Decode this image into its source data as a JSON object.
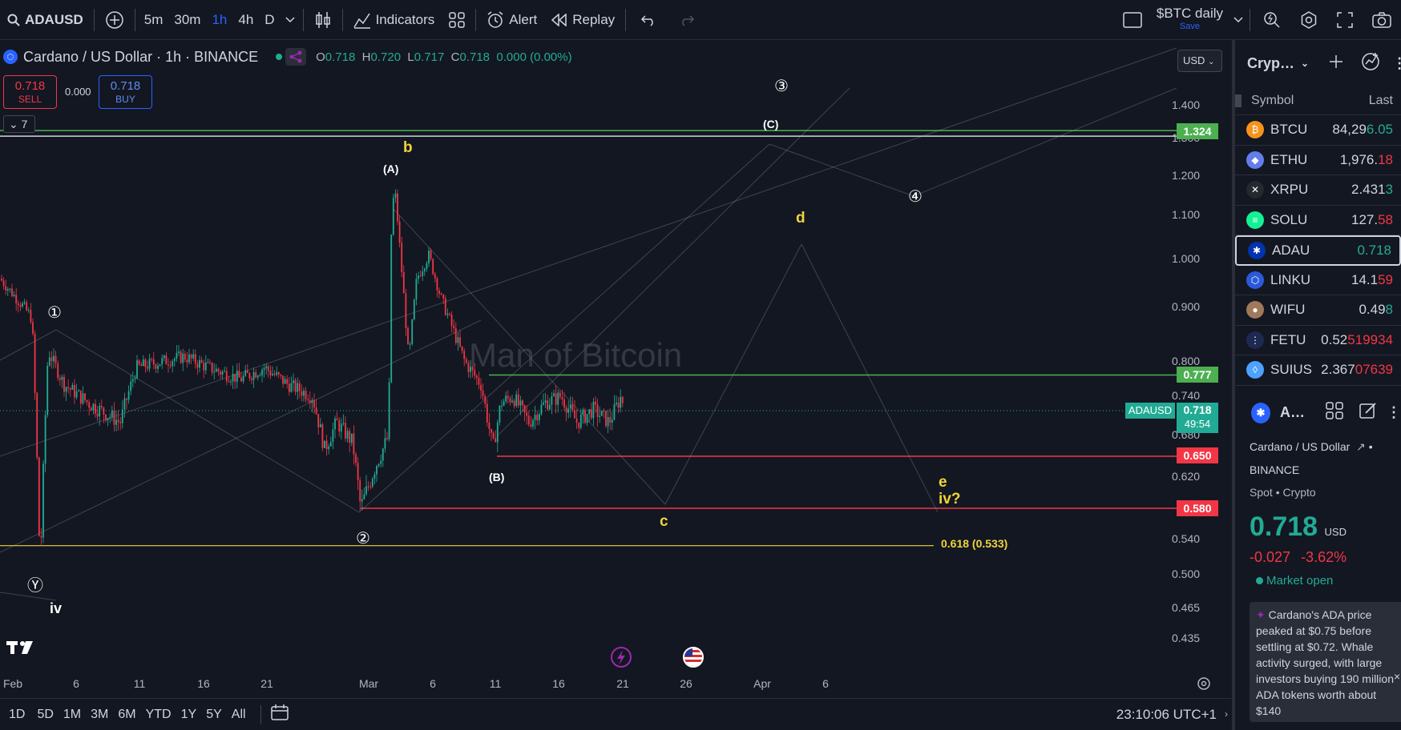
{
  "toolbar": {
    "symbol": "ADAUSD",
    "intervals": [
      "5m",
      "30m",
      "1h",
      "4h",
      "D"
    ],
    "active_interval": "1h",
    "indicators_label": "Indicators",
    "alert_label": "Alert",
    "replay_label": "Replay",
    "layout_name": "$BTC daily",
    "save_label": "Save"
  },
  "legend": {
    "title": "Cardano / US Dollar · 1h · BINANCE",
    "o_label": "O",
    "o": "0.718",
    "h_label": "H",
    "h": "0.720",
    "l_label": "L",
    "l": "0.717",
    "c_label": "C",
    "c": "0.718",
    "change": "0.000 (0.00%)",
    "sell_price": "0.718",
    "sell_label": "SELL",
    "spread": "0.000",
    "buy_price": "0.718",
    "buy_label": "BUY",
    "collapse_count": "7",
    "currency": "USD"
  },
  "watermark": "Man of Bitcoin",
  "price_axis": [
    "1.400",
    "1.300",
    "1.200",
    "1.100",
    "1.000",
    "0.900",
    "0.800",
    "0.740",
    "0.680",
    "0.620",
    "0.540",
    "0.500",
    "0.465",
    "0.435"
  ],
  "price_tags": {
    "level_1324": "1.324",
    "level_0777": "0.777",
    "current_symbol": "ADAUSD",
    "current_price": "0.718",
    "countdown": "49:54",
    "level_0650": "0.650",
    "level_0580": "0.580"
  },
  "fib_label": "0.618 (0.533)",
  "wave_labels": {
    "w1": "①",
    "w2": "②",
    "w3": "③",
    "w4": "④",
    "wY": "Ⓨ",
    "iv": "iv",
    "A": "(A)",
    "B": "(B)",
    "C": "(C)",
    "b": "b",
    "c": "c",
    "d": "d",
    "e": "e",
    "iv_q": "iv?"
  },
  "time_axis": [
    "Feb",
    "6",
    "11",
    "16",
    "21",
    "Mar",
    "6",
    "11",
    "16",
    "21",
    "26",
    "Apr",
    "6"
  ],
  "bottombar": {
    "ranges": [
      "1D",
      "5D",
      "1M",
      "3M",
      "6M",
      "YTD",
      "1Y",
      "5Y",
      "All"
    ],
    "clock": "23:10:06 UTC+1"
  },
  "watchlist": {
    "title": "Cryp…",
    "col_symbol": "Symbol",
    "col_last": "Last",
    "rows": [
      {
        "symbol": "BTCU",
        "last_a": "84,29",
        "last_b": "6.05",
        "dir": "up",
        "color": "#f7931a",
        "glyph": "₿"
      },
      {
        "symbol": "ETHU",
        "last_a": "1,976.",
        "last_b": "18",
        "dir": "dn",
        "color": "#627eea",
        "glyph": "◆"
      },
      {
        "symbol": "XRPU",
        "last_a": "2.431",
        "last_b": "3",
        "dir": "up",
        "color": "#23292f",
        "glyph": "✕"
      },
      {
        "symbol": "SOLU",
        "last_a": "127.",
        "last_b": "58",
        "dir": "dn",
        "color": "#14f195",
        "glyph": "≡"
      },
      {
        "symbol": "ADAU",
        "last_a": "0.718",
        "last_b": "",
        "dir": "up",
        "color": "#0033ad",
        "glyph": "✱"
      },
      {
        "symbol": "LINKU",
        "last_a": "14.1",
        "last_b": "59",
        "dir": "dn",
        "color": "#2a5ada",
        "glyph": "⬡"
      },
      {
        "symbol": "WIFU",
        "last_a": "0.49",
        "last_b": "8",
        "dir": "up",
        "color": "#a0785a",
        "glyph": "●"
      },
      {
        "symbol": "FETU",
        "last_a": "0.52",
        "last_b": "519934",
        "dir": "dn",
        "color": "#1d2951",
        "glyph": "⋮"
      },
      {
        "symbol": "SUIUS",
        "last_a": "2.367",
        "last_b": "07639",
        "dir": "dn",
        "color": "#4da2ff",
        "glyph": "◊"
      }
    ]
  },
  "details": {
    "short_name": "A…",
    "name": "Cardano / US Dollar",
    "exchange": "BINANCE",
    "type": "Spot • Crypto",
    "price": "0.718",
    "currency": "USD",
    "change": "-0.027",
    "change_pct": "-3.62%",
    "market_status": "Market open",
    "news": "Cardano's ADA price peaked at $0.75 before settling at $0.72. Whale activity surged, with large investors buying 190 million ADA tokens worth about $140"
  },
  "colors": {
    "up": "#22ab94",
    "down": "#f23645",
    "accent": "#2962ff",
    "green_line": "#4caf50",
    "red_line": "#f23645",
    "fib": "#ffeb3b",
    "wave_yellow": "#f0d43a",
    "bg": "#131722"
  }
}
